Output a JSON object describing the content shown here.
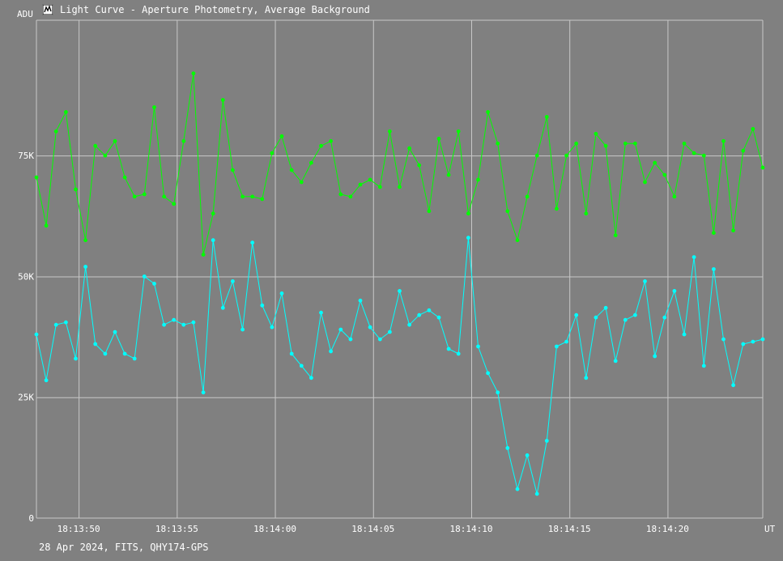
{
  "window": {
    "title": "Light Curve - Aperture Photometry, Average Background",
    "icon": "light-curve-app-icon"
  },
  "caption": "28 Apr 2024, FITS, QHY174-GPS",
  "colors": {
    "background": "#808080",
    "grid": "#c8c8c8",
    "series_green": "#00ff00",
    "series_cyan": "#00ffff",
    "text": "#ffffff"
  },
  "chart_data": {
    "type": "line",
    "ylabel": "ADU",
    "xlabel": "UT",
    "ylim": [
      0,
      103000
    ],
    "xlim": [
      47.85,
      84.85
    ],
    "y_ticks": [
      {
        "value": 0,
        "label": "0"
      },
      {
        "value": 25000,
        "label": "25K"
      },
      {
        "value": 50000,
        "label": "50K"
      },
      {
        "value": 75000,
        "label": "75K"
      }
    ],
    "x_ticks": [
      {
        "value": 50,
        "label": "18:13:50"
      },
      {
        "value": 55,
        "label": "18:13:55"
      },
      {
        "value": 60,
        "label": "18:14:00"
      },
      {
        "value": 65,
        "label": "18:14:05"
      },
      {
        "value": 70,
        "label": "18:14:10"
      },
      {
        "value": 75,
        "label": "18:14:15"
      },
      {
        "value": 80,
        "label": "18:14:20"
      }
    ],
    "grid": true,
    "x_start": 47.85,
    "x_step": 0.5,
    "series": [
      {
        "color": "#00ff00",
        "values": [
          70500,
          60500,
          80000,
          84000,
          68000,
          57500,
          77000,
          75000,
          78000,
          70500,
          66500,
          67000,
          85000,
          66500,
          65000,
          78000,
          92000,
          54500,
          63000,
          86500,
          72000,
          66500,
          66500,
          66000,
          75500,
          79000,
          72000,
          69500,
          73500,
          77000,
          78000,
          67000,
          66500,
          69000,
          70000,
          68500,
          80000,
          68500,
          76500,
          73000,
          63500,
          78500,
          71000,
          80000,
          63000,
          70000,
          84000,
          77500,
          63500,
          57500,
          66500,
          75000,
          83000,
          64000,
          75000,
          77500,
          63000,
          79500,
          77000,
          58500,
          77500,
          77500,
          69500,
          73500,
          71000,
          66500,
          77500,
          75500,
          75000,
          59000,
          78000,
          59500,
          76000,
          80500,
          72500
        ]
      },
      {
        "color": "#00ffff",
        "values": [
          38000,
          28500,
          40000,
          40500,
          33000,
          52000,
          36000,
          34000,
          38500,
          34000,
          33000,
          50000,
          48500,
          40000,
          41000,
          40000,
          40500,
          26000,
          57500,
          43500,
          49000,
          39000,
          57000,
          44000,
          39500,
          46500,
          34000,
          31500,
          29000,
          42500,
          34500,
          39000,
          37000,
          45000,
          39500,
          37000,
          38500,
          47000,
          40000,
          42000,
          43000,
          41500,
          35000,
          34000,
          58000,
          35500,
          30000,
          26000,
          14500,
          6000,
          13000,
          5000,
          16000,
          35500,
          36500,
          42000,
          29000,
          41500,
          43500,
          32500,
          41000,
          42000,
          49000,
          33500,
          41500,
          47000,
          38000,
          54000,
          31500,
          51500,
          37000,
          27500,
          36000,
          36500,
          37000
        ]
      }
    ]
  }
}
